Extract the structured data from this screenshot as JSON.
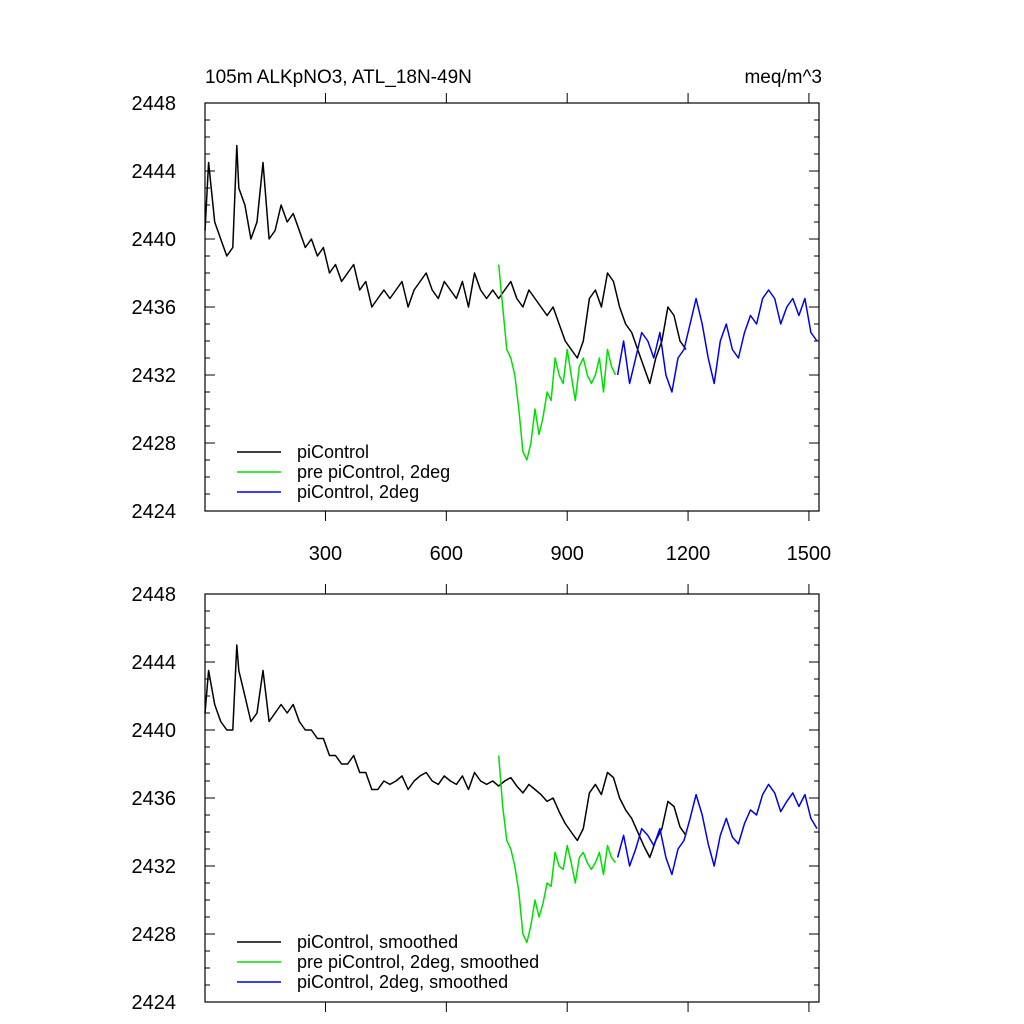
{
  "colors": {
    "black": "#000000",
    "green": "#00e000",
    "blue": "#0000ee"
  },
  "chart_data": [
    {
      "type": "line",
      "title_left": "105m ALKpNO3, ATL_18N-49N",
      "title_right": "meq/m^3",
      "xlim": [
        1,
        1525
      ],
      "ylim": [
        2424,
        2448
      ],
      "x_ticks": [
        300,
        600,
        900,
        1200,
        1500
      ],
      "x_tick_labels": [
        "300",
        "600",
        "900",
        "1200",
        "1500"
      ],
      "y_ticks": [
        2424,
        2428,
        2432,
        2436,
        2440,
        2444,
        2448
      ],
      "y_tick_labels": [
        "2424",
        "2428",
        "2432",
        "2436",
        "2440",
        "2444",
        "2448"
      ],
      "legend": [
        "piControl",
        "pre piControl, 2deg",
        "piControl, 2deg"
      ],
      "series": [
        {
          "name": "piControl",
          "color": "#000000",
          "x": [
            1,
            10,
            25,
            40,
            55,
            70,
            80,
            85,
            100,
            115,
            130,
            145,
            160,
            175,
            190,
            205,
            220,
            235,
            250,
            265,
            280,
            295,
            310,
            325,
            340,
            355,
            370,
            385,
            400,
            415,
            430,
            445,
            460,
            475,
            490,
            505,
            520,
            535,
            550,
            565,
            580,
            595,
            610,
            625,
            640,
            655,
            670,
            685,
            700,
            715,
            730,
            745,
            760,
            775,
            790,
            805,
            820,
            835,
            850,
            865,
            880,
            895,
            910,
            925,
            940,
            955,
            970,
            985,
            1000,
            1015,
            1030,
            1045,
            1060,
            1075,
            1090,
            1105,
            1120,
            1135,
            1150,
            1165,
            1180,
            1195
          ],
          "values": [
            2440.5,
            2444.5,
            2441,
            2440,
            2439,
            2439.5,
            2445.5,
            2443,
            2442,
            2440,
            2441,
            2444.5,
            2440,
            2440.5,
            2442,
            2441,
            2441.5,
            2440.5,
            2439.5,
            2440,
            2439,
            2439.5,
            2438,
            2438.5,
            2437.5,
            2438,
            2438.5,
            2437,
            2437.5,
            2436,
            2436.5,
            2437,
            2436.5,
            2437,
            2437.5,
            2436,
            2437,
            2437.5,
            2438,
            2437,
            2436.5,
            2437.5,
            2437,
            2436.5,
            2437.5,
            2436,
            2438,
            2437,
            2436.5,
            2437,
            2436.5,
            2437,
            2437.5,
            2436.5,
            2436,
            2437,
            2436.5,
            2436,
            2435.5,
            2436,
            2435,
            2434,
            2433.5,
            2433,
            2434,
            2436.5,
            2437,
            2436,
            2438,
            2437.5,
            2436,
            2435,
            2434.5,
            2433.5,
            2432.5,
            2431.5,
            2433,
            2434,
            2436,
            2435.5,
            2434,
            2433.5
          ]
        },
        {
          "name": "pre piControl, 2deg",
          "color": "#00e000",
          "x": [
            730,
            740,
            750,
            760,
            770,
            780,
            790,
            800,
            810,
            820,
            830,
            840,
            850,
            860,
            870,
            880,
            890,
            900,
            910,
            920,
            930,
            940,
            950,
            960,
            970,
            980,
            990,
            1000,
            1010,
            1020
          ],
          "values": [
            2438.5,
            2436,
            2433.5,
            2433,
            2432,
            2430,
            2427.5,
            2427,
            2428,
            2430,
            2428.5,
            2429.5,
            2431,
            2430.5,
            2433,
            2432,
            2431.5,
            2433.5,
            2432,
            2430.5,
            2432.5,
            2433,
            2432,
            2431.5,
            2432,
            2433,
            2431,
            2433.5,
            2432.5,
            2432
          ]
        },
        {
          "name": "piControl, 2deg",
          "color": "#0000ee",
          "x": [
            1025,
            1040,
            1055,
            1070,
            1085,
            1100,
            1115,
            1130,
            1145,
            1160,
            1175,
            1190,
            1205,
            1220,
            1235,
            1250,
            1265,
            1280,
            1295,
            1310,
            1325,
            1340,
            1355,
            1370,
            1385,
            1400,
            1415,
            1430,
            1445,
            1460,
            1475,
            1490,
            1505,
            1520
          ],
          "values": [
            2432,
            2434,
            2431.5,
            2433,
            2434.5,
            2434,
            2433,
            2434.5,
            2432,
            2431,
            2433,
            2433.5,
            2435,
            2436.5,
            2435,
            2433,
            2431.5,
            2434,
            2435,
            2433.5,
            2433,
            2434.5,
            2435.5,
            2435,
            2436.5,
            2437,
            2436.5,
            2435,
            2436,
            2436.5,
            2435.5,
            2436.5,
            2434.5,
            2434
          ]
        }
      ]
    },
    {
      "type": "line",
      "xlim": [
        1,
        1525
      ],
      "ylim": [
        2424,
        2448
      ],
      "x_ticks": [
        300,
        600,
        900,
        1200,
        1500
      ],
      "y_ticks": [
        2424,
        2428,
        2432,
        2436,
        2440,
        2444,
        2448
      ],
      "y_tick_labels": [
        "2424",
        "2428",
        "2432",
        "2436",
        "2440",
        "2444",
        "2448"
      ],
      "legend": [
        "piControl, smoothed",
        "pre piControl, 2deg, smoothed",
        "piControl, 2deg, smoothed"
      ],
      "series": [
        {
          "name": "piControl, smoothed",
          "color": "#000000",
          "x": [
            1,
            10,
            25,
            40,
            55,
            70,
            80,
            85,
            100,
            115,
            130,
            145,
            160,
            175,
            190,
            205,
            220,
            235,
            250,
            265,
            280,
            295,
            310,
            325,
            340,
            355,
            370,
            385,
            400,
            415,
            430,
            445,
            460,
            475,
            490,
            505,
            520,
            535,
            550,
            565,
            580,
            595,
            610,
            625,
            640,
            655,
            670,
            685,
            700,
            715,
            730,
            745,
            760,
            775,
            790,
            805,
            820,
            835,
            850,
            865,
            880,
            895,
            910,
            925,
            940,
            955,
            970,
            985,
            1000,
            1015,
            1030,
            1045,
            1060,
            1075,
            1090,
            1105,
            1120,
            1135,
            1150,
            1165,
            1180,
            1195
          ],
          "values": [
            2441,
            2443.5,
            2441.5,
            2440.5,
            2440,
            2440,
            2445,
            2443.5,
            2442,
            2440.5,
            2441,
            2443.5,
            2440.5,
            2441,
            2441.5,
            2441,
            2441.5,
            2440.5,
            2440,
            2440,
            2439.5,
            2439.5,
            2438.5,
            2438.5,
            2438,
            2438,
            2438.5,
            2437.5,
            2437.5,
            2436.5,
            2436.5,
            2437,
            2436.8,
            2437,
            2437.3,
            2436.5,
            2437,
            2437.3,
            2437.5,
            2437,
            2436.8,
            2437.3,
            2437,
            2436.8,
            2437.3,
            2436.5,
            2437.5,
            2437,
            2436.8,
            2437,
            2436.7,
            2437,
            2437.2,
            2436.7,
            2436.3,
            2436.8,
            2436.5,
            2436.2,
            2435.8,
            2436,
            2435.2,
            2434.5,
            2434,
            2433.5,
            2434.2,
            2436.3,
            2436.8,
            2436.2,
            2437.5,
            2437.2,
            2436,
            2435.3,
            2434.8,
            2434,
            2433.2,
            2432.5,
            2433.5,
            2434.2,
            2435.8,
            2435.5,
            2434.3,
            2433.8
          ]
        },
        {
          "name": "pre piControl, 2deg, smoothed",
          "color": "#00e000",
          "x": [
            730,
            740,
            750,
            760,
            770,
            780,
            790,
            800,
            810,
            820,
            830,
            840,
            850,
            860,
            870,
            880,
            890,
            900,
            910,
            920,
            930,
            940,
            950,
            960,
            970,
            980,
            990,
            1000,
            1010,
            1020
          ],
          "values": [
            2438.5,
            2435.5,
            2433.5,
            2433,
            2432,
            2430.5,
            2428,
            2427.5,
            2428.5,
            2430,
            2429,
            2429.8,
            2431,
            2430.8,
            2432.8,
            2432,
            2431.8,
            2433.2,
            2432.2,
            2431,
            2432.5,
            2432.8,
            2432.2,
            2431.8,
            2432.2,
            2432.8,
            2431.5,
            2433.2,
            2432.5,
            2432.2
          ]
        },
        {
          "name": "piControl, 2deg, smoothed",
          "color": "#0000ee",
          "x": [
            1025,
            1040,
            1055,
            1070,
            1085,
            1100,
            1115,
            1130,
            1145,
            1160,
            1175,
            1190,
            1205,
            1220,
            1235,
            1250,
            1265,
            1280,
            1295,
            1310,
            1325,
            1340,
            1355,
            1370,
            1385,
            1400,
            1415,
            1430,
            1445,
            1460,
            1475,
            1490,
            1505,
            1520
          ],
          "values": [
            2432.5,
            2433.8,
            2432,
            2433,
            2434.2,
            2433.8,
            2433.2,
            2434.2,
            2432.5,
            2431.5,
            2433,
            2433.5,
            2434.8,
            2436.2,
            2435,
            2433.3,
            2432,
            2433.8,
            2434.8,
            2433.7,
            2433.3,
            2434.5,
            2435.3,
            2435,
            2436.2,
            2436.8,
            2436.3,
            2435.2,
            2435.8,
            2436.3,
            2435.5,
            2436.2,
            2434.8,
            2434.2
          ]
        }
      ]
    }
  ]
}
